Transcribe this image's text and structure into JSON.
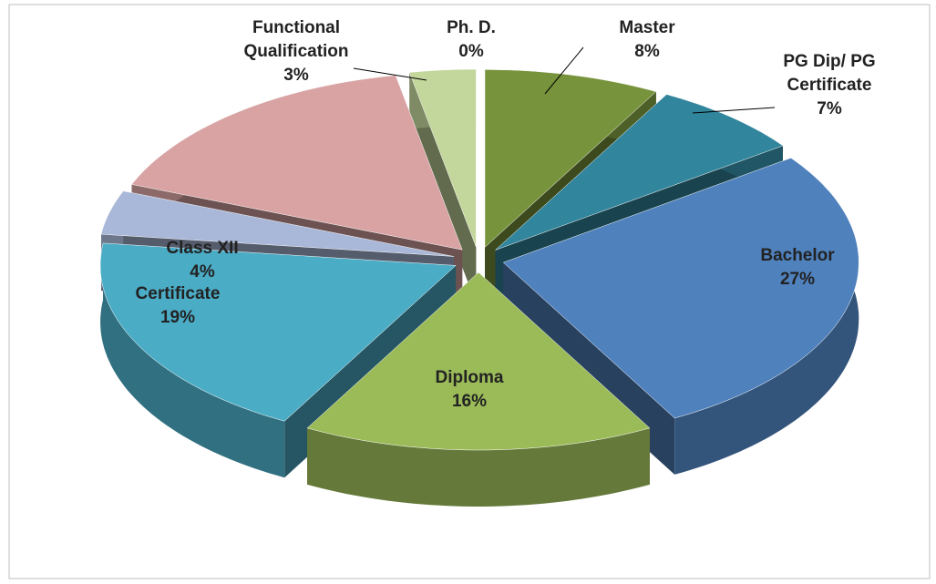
{
  "chart_data": {
    "type": "pie3d",
    "categories": [
      "Ph. D.",
      "Master",
      "PG Dip/ PG Certificate",
      "Bachelor",
      "Diploma",
      "Certificate",
      "Class XII",
      null,
      "Functional Qualification"
    ],
    "values": [
      0,
      8,
      7,
      27,
      16,
      19,
      4,
      16,
      3
    ],
    "value_labels": [
      "0%",
      "8%",
      "7%",
      "27%",
      "16%",
      "19%",
      "4%",
      null,
      "3%"
    ],
    "colors": [
      "#4f81bd",
      "#77933c",
      "#31859c",
      "#4f81bd",
      "#9bbb59",
      "#4bacc6",
      "#a9b8d8",
      "#d9a3a3",
      "#c3d69b"
    ]
  }
}
